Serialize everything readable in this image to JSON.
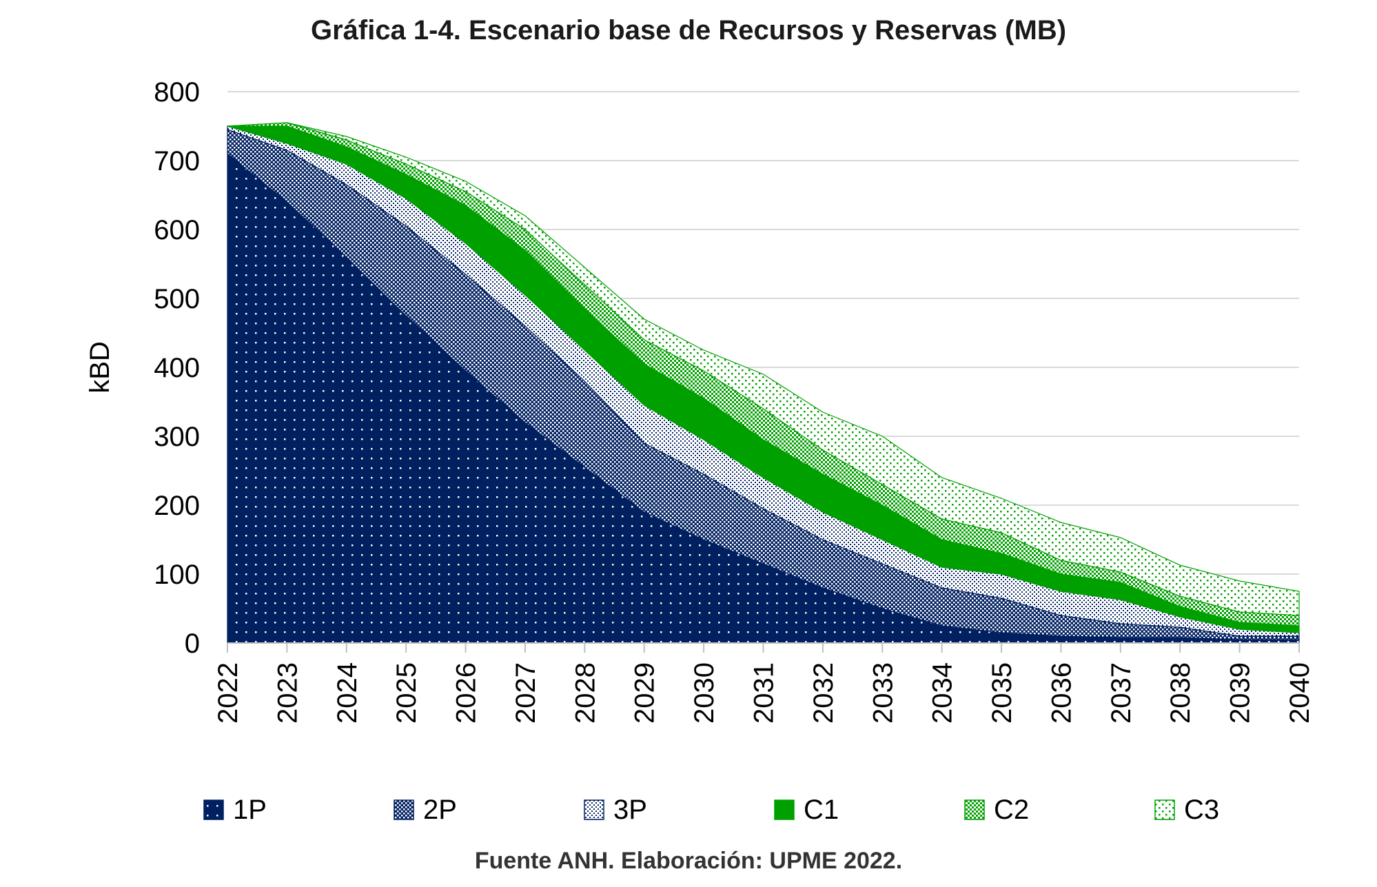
{
  "chart_data": {
    "type": "area",
    "stacked": true,
    "title": "Gráfica 1-4. Escenario base de Recursos y Reservas (MB)",
    "ylabel": "kBD",
    "xlabel": "",
    "ylim": [
      0,
      800
    ],
    "yticks": [
      0,
      100,
      200,
      300,
      400,
      500,
      600,
      700,
      800
    ],
    "grid": true,
    "legend_position": "bottom",
    "x": [
      "2022",
      "2023",
      "2024",
      "2025",
      "2026",
      "2027",
      "2028",
      "2029",
      "2030",
      "2031",
      "2032",
      "2033",
      "2034",
      "2035",
      "2036",
      "2037",
      "2038",
      "2039",
      "2040"
    ],
    "series": [
      {
        "name": "1P",
        "color": "#002060",
        "pattern": "solid",
        "values": [
          710,
          640,
          560,
          475,
          395,
          320,
          255,
          190,
          150,
          115,
          80,
          50,
          25,
          15,
          10,
          8,
          8,
          5,
          5
        ]
      },
      {
        "name": "2P",
        "color": "#002060",
        "pattern": "dense-dots",
        "values": [
          35,
          75,
          105,
          130,
          140,
          140,
          125,
          100,
          95,
          80,
          70,
          65,
          55,
          50,
          30,
          20,
          15,
          5,
          5
        ]
      },
      {
        "name": "3P",
        "color": "#002060",
        "pattern": "checker",
        "values": [
          5,
          10,
          30,
          40,
          45,
          45,
          45,
          55,
          50,
          45,
          40,
          35,
          30,
          35,
          35,
          35,
          15,
          10,
          5
        ]
      },
      {
        "name": "C1",
        "color": "#00A000",
        "pattern": "solid",
        "values": [
          0,
          25,
          25,
          35,
          55,
          65,
          60,
          60,
          60,
          55,
          55,
          50,
          40,
          30,
          25,
          25,
          15,
          10,
          10
        ]
      },
      {
        "name": "C2",
        "color": "#00A000",
        "pattern": "checker",
        "values": [
          0,
          5,
          10,
          15,
          20,
          30,
          35,
          35,
          40,
          45,
          35,
          30,
          30,
          30,
          20,
          15,
          15,
          15,
          15
        ]
      },
      {
        "name": "C3",
        "color": "#00A000",
        "pattern": "sparse-dots",
        "values": [
          0,
          0,
          5,
          10,
          15,
          20,
          25,
          30,
          30,
          50,
          55,
          70,
          60,
          50,
          55,
          50,
          45,
          45,
          35
        ]
      }
    ],
    "source": "Fuente ANH. Elaboración: UPME 2022."
  }
}
